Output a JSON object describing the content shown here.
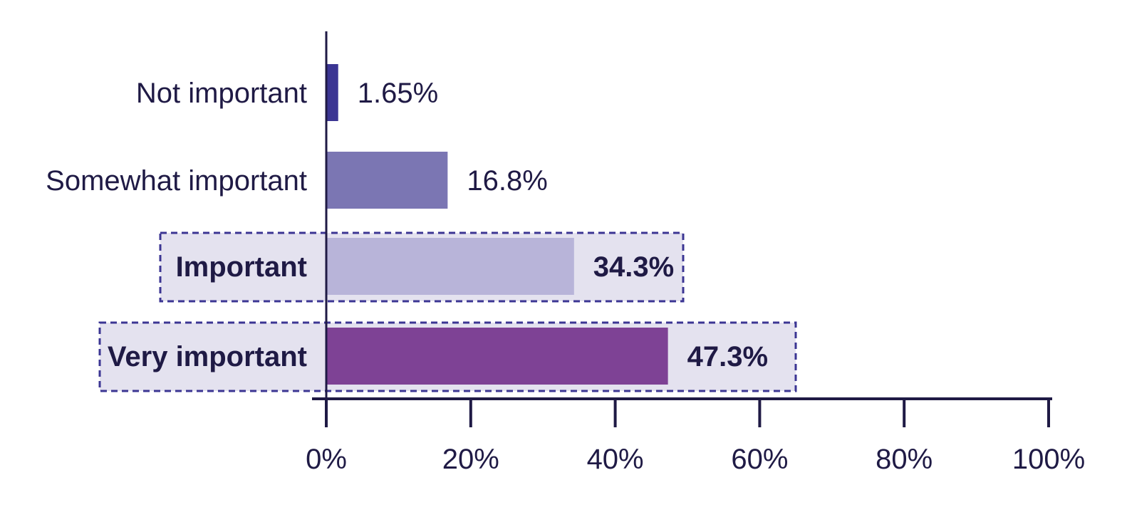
{
  "chart_data": {
    "type": "bar",
    "orientation": "horizontal",
    "categories": [
      "Not important",
      "Somewhat important",
      "Important",
      "Very important"
    ],
    "values": [
      1.65,
      16.8,
      34.3,
      47.3
    ],
    "value_labels": [
      "1.65%",
      "16.8%",
      "34.3%",
      "47.3%"
    ],
    "highlighted": [
      false,
      false,
      true,
      true
    ],
    "bar_colors": [
      "#3b3593",
      "#7b76b3",
      "#b8b4d9",
      "#7e4295"
    ],
    "highlight_fill": "#e4e2ef",
    "highlight_border": "#3b3593",
    "axis_color": "#1f1a45",
    "text_color": "#1f1a45",
    "xlim": [
      0,
      100
    ],
    "x_ticks": [
      0,
      20,
      40,
      60,
      80,
      100
    ],
    "x_tick_labels": [
      "0%",
      "20%",
      "40%",
      "60%",
      "80%",
      "100%"
    ],
    "title": "",
    "xlabel": "",
    "ylabel": "",
    "grid": false,
    "legend": "none"
  }
}
